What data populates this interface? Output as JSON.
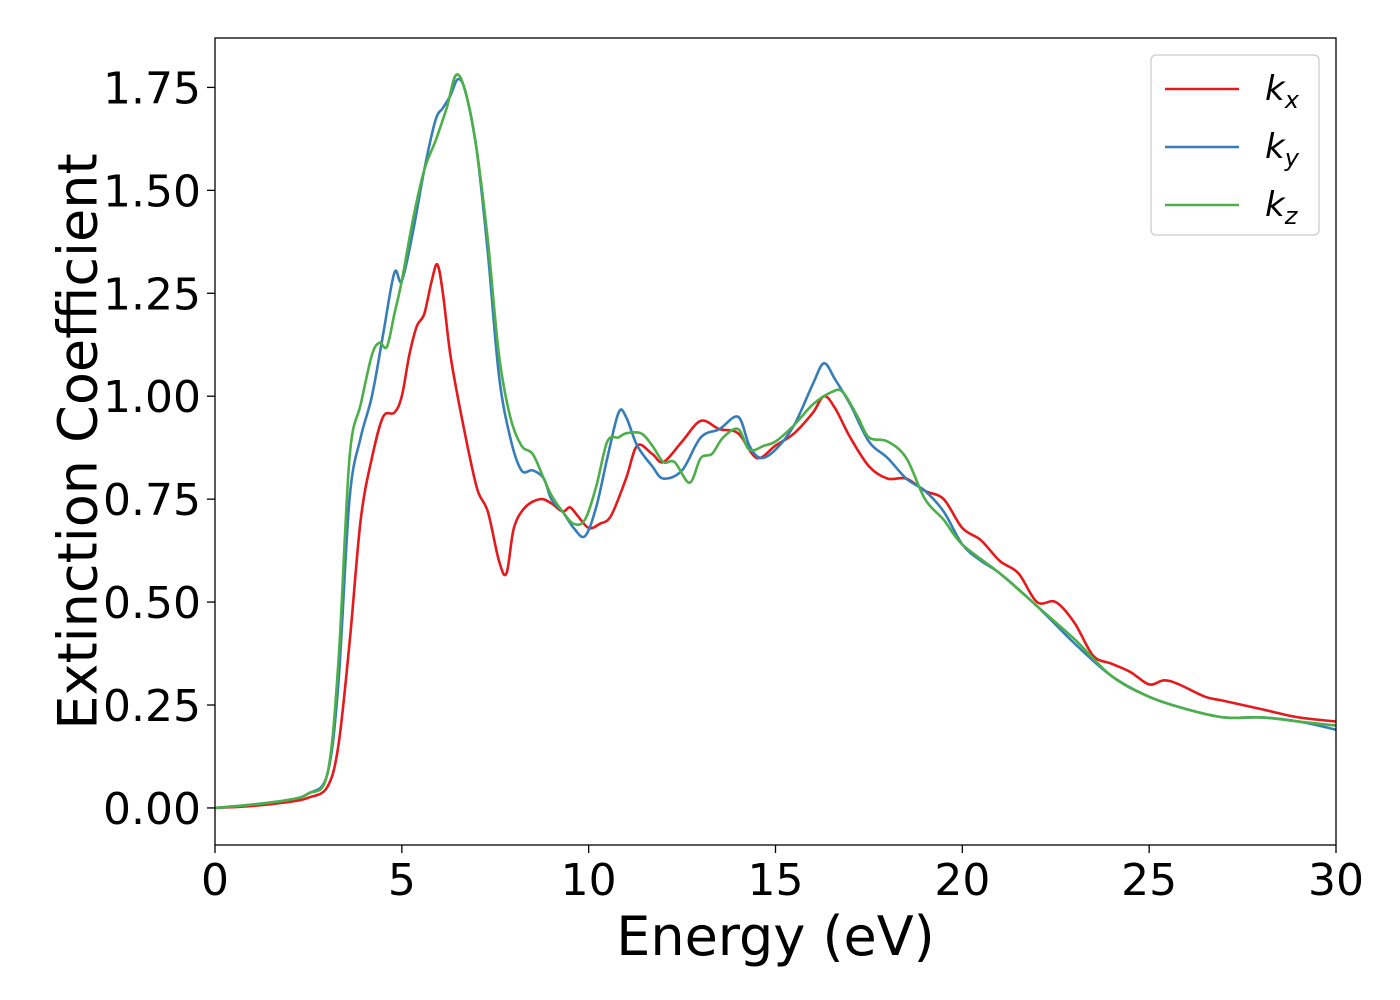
{
  "chart_data": {
    "type": "line",
    "xlabel": "Energy (eV)",
    "ylabel": "Extinction Coefficient",
    "xlim": [
      0,
      30
    ],
    "ylim": [
      -0.09,
      1.87
    ],
    "xticks": [
      0,
      5,
      10,
      15,
      20,
      25,
      30
    ],
    "xtick_labels": [
      "0",
      "5",
      "10",
      "15",
      "20",
      "25",
      "30"
    ],
    "yticks": [
      0.0,
      0.25,
      0.5,
      0.75,
      1.0,
      1.25,
      1.5,
      1.75
    ],
    "ytick_labels": [
      "0.00",
      "0.25",
      "0.50",
      "0.75",
      "1.00",
      "1.25",
      "1.50",
      "1.75"
    ],
    "grid": false,
    "legend_position": "top-right",
    "series": [
      {
        "name": "k_x",
        "label_base": "k",
        "label_sub": "x",
        "color": "#e41a1c",
        "x": [
          0,
          1,
          2,
          2.5,
          3.0,
          3.3,
          3.6,
          3.9,
          4.2,
          4.5,
          4.8,
          5.0,
          5.2,
          5.4,
          5.6,
          5.8,
          5.95,
          6.1,
          6.3,
          6.6,
          7.0,
          7.3,
          7.6,
          7.8,
          8.0,
          8.3,
          8.7,
          9.0,
          9.3,
          9.5,
          9.7,
          10.0,
          10.3,
          10.6,
          11.0,
          11.3,
          11.7,
          12.0,
          12.5,
          13.0,
          13.5,
          14.0,
          14.5,
          15.0,
          15.5,
          16.0,
          16.3,
          16.6,
          17.0,
          17.5,
          18.0,
          18.5,
          19.0,
          19.5,
          20.0,
          20.5,
          21.0,
          21.5,
          22.0,
          22.5,
          23.0,
          23.5,
          24.0,
          24.5,
          25.0,
          25.4,
          25.8,
          26.5,
          27.0,
          28.0,
          29.0,
          30.0
        ],
        "y": [
          0.0,
          0.005,
          0.015,
          0.025,
          0.05,
          0.15,
          0.4,
          0.7,
          0.85,
          0.95,
          0.96,
          1.0,
          1.1,
          1.17,
          1.2,
          1.28,
          1.32,
          1.25,
          1.1,
          0.95,
          0.78,
          0.72,
          0.6,
          0.57,
          0.68,
          0.73,
          0.75,
          0.74,
          0.72,
          0.73,
          0.71,
          0.68,
          0.69,
          0.71,
          0.8,
          0.88,
          0.86,
          0.84,
          0.89,
          0.94,
          0.92,
          0.91,
          0.85,
          0.88,
          0.91,
          0.96,
          1.0,
          0.97,
          0.9,
          0.83,
          0.8,
          0.8,
          0.77,
          0.75,
          0.68,
          0.65,
          0.6,
          0.57,
          0.5,
          0.5,
          0.45,
          0.37,
          0.35,
          0.33,
          0.3,
          0.31,
          0.3,
          0.27,
          0.26,
          0.24,
          0.22,
          0.21
        ]
      },
      {
        "name": "k_y",
        "label_base": "k",
        "label_sub": "y",
        "color": "#377eb8",
        "x": [
          0,
          1,
          2,
          2.5,
          3.0,
          3.3,
          3.6,
          3.9,
          4.2,
          4.5,
          4.8,
          5.0,
          5.3,
          5.6,
          5.9,
          6.1,
          6.3,
          6.5,
          6.7,
          7.0,
          7.3,
          7.6,
          7.9,
          8.2,
          8.5,
          8.8,
          9.0,
          9.3,
          9.6,
          9.9,
          10.2,
          10.5,
          10.8,
          11.0,
          11.3,
          11.7,
          12.0,
          12.5,
          13.0,
          13.5,
          14.0,
          14.3,
          14.6,
          15.0,
          15.5,
          16.0,
          16.3,
          16.6,
          17.0,
          17.5,
          18.0,
          18.5,
          19.0,
          19.5,
          20.0,
          20.5,
          21.0,
          22.0,
          23.0,
          24.0,
          25.0,
          26.0,
          27.0,
          28.0,
          29.0,
          30.0
        ],
        "y": [
          0.0,
          0.008,
          0.02,
          0.035,
          0.08,
          0.3,
          0.75,
          0.9,
          1.0,
          1.15,
          1.3,
          1.28,
          1.4,
          1.55,
          1.67,
          1.7,
          1.73,
          1.77,
          1.74,
          1.6,
          1.35,
          1.05,
          0.9,
          0.82,
          0.82,
          0.8,
          0.75,
          0.72,
          0.68,
          0.66,
          0.73,
          0.85,
          0.96,
          0.95,
          0.88,
          0.83,
          0.8,
          0.82,
          0.9,
          0.92,
          0.95,
          0.88,
          0.85,
          0.87,
          0.93,
          1.03,
          1.08,
          1.04,
          0.98,
          0.89,
          0.85,
          0.8,
          0.77,
          0.72,
          0.64,
          0.6,
          0.57,
          0.49,
          0.4,
          0.32,
          0.27,
          0.24,
          0.22,
          0.22,
          0.21,
          0.19
        ]
      },
      {
        "name": "k_z",
        "label_base": "k",
        "label_sub": "z",
        "color": "#4daf4a",
        "x": [
          0,
          1,
          2,
          2.5,
          3.0,
          3.3,
          3.6,
          3.9,
          4.2,
          4.4,
          4.6,
          4.8,
          5.0,
          5.3,
          5.6,
          5.9,
          6.2,
          6.45,
          6.7,
          7.0,
          7.3,
          7.6,
          7.9,
          8.2,
          8.5,
          8.8,
          9.0,
          9.3,
          9.6,
          9.9,
          10.2,
          10.5,
          10.8,
          11.0,
          11.4,
          11.7,
          12.0,
          12.3,
          12.7,
          13.0,
          13.3,
          13.6,
          14.0,
          14.3,
          14.7,
          15.0,
          15.5,
          16.0,
          16.5,
          16.8,
          17.2,
          17.5,
          18.0,
          18.5,
          19.0,
          19.5,
          20.0,
          21.0,
          22.0,
          23.0,
          24.0,
          25.0,
          26.0,
          27.0,
          28.0,
          29.0,
          30.0
        ],
        "y": [
          0.0,
          0.008,
          0.02,
          0.035,
          0.08,
          0.35,
          0.85,
          0.98,
          1.1,
          1.13,
          1.12,
          1.2,
          1.28,
          1.43,
          1.55,
          1.62,
          1.7,
          1.78,
          1.74,
          1.6,
          1.38,
          1.1,
          0.95,
          0.88,
          0.86,
          0.8,
          0.76,
          0.72,
          0.69,
          0.7,
          0.78,
          0.89,
          0.9,
          0.91,
          0.91,
          0.88,
          0.84,
          0.84,
          0.79,
          0.85,
          0.86,
          0.9,
          0.92,
          0.87,
          0.88,
          0.89,
          0.93,
          0.98,
          1.01,
          1.01,
          0.95,
          0.9,
          0.89,
          0.85,
          0.75,
          0.7,
          0.64,
          0.57,
          0.49,
          0.41,
          0.32,
          0.27,
          0.24,
          0.22,
          0.22,
          0.21,
          0.2
        ]
      }
    ]
  }
}
